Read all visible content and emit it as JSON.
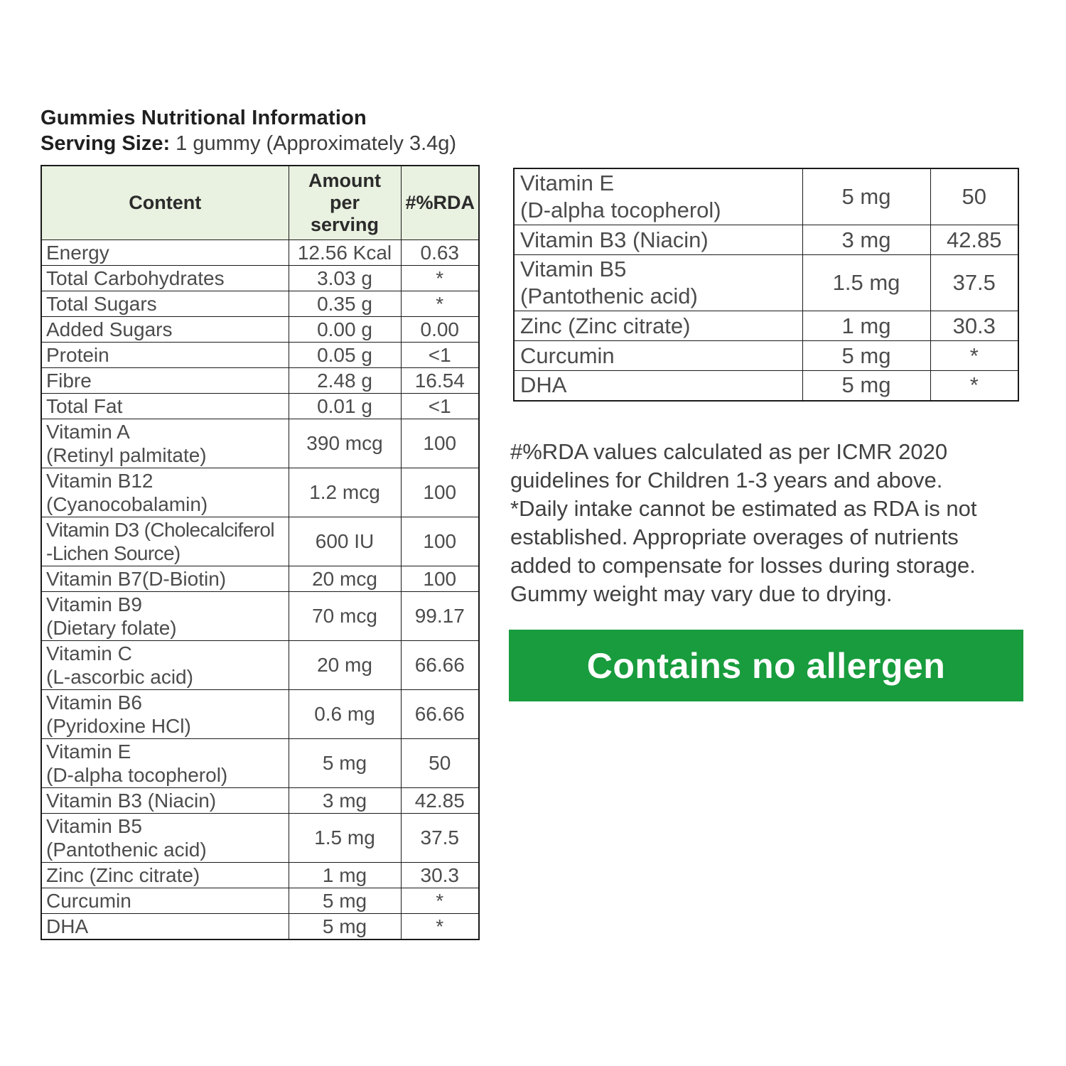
{
  "page": {
    "title": "Gummies Nutritional Information",
    "serving_label": "Serving Size:",
    "serving_value": " 1 gummy (Approximately 3.4g)"
  },
  "left_table": {
    "headers": [
      "Content",
      "Amount\nper\nserving",
      "#%RDA"
    ],
    "rows": [
      {
        "content": "Energy",
        "amount": "12.56 Kcal",
        "rda": "0.63"
      },
      {
        "content": "Total Carbohydrates",
        "amount": "3.03 g",
        "rda": "*"
      },
      {
        "content": "Total Sugars",
        "amount": "0.35 g",
        "rda": "*"
      },
      {
        "content": "Added Sugars",
        "amount": "0.00 g",
        "rda": "0.00"
      },
      {
        "content": "Protein",
        "amount": "0.05 g",
        "rda": "<1"
      },
      {
        "content": "Fibre",
        "amount": "2.48 g",
        "rda": "16.54"
      },
      {
        "content": "Total Fat",
        "amount": "0.01 g",
        "rda": "<1"
      },
      {
        "content": "Vitamin A\n(Retinyl palmitate)",
        "amount": "390 mcg",
        "rda": "100"
      },
      {
        "content": "Vitamin B12\n(Cyanocobalamin)",
        "amount": "1.2 mcg",
        "rda": "100"
      },
      {
        "content": "Vitamin D3 (Cholecalciferol\n-Lichen Source)",
        "amount": "600 IU",
        "rda": "100",
        "compact": true
      },
      {
        "content": "Vitamin B7(D-Biotin)",
        "amount": "20 mcg",
        "rda": "100"
      },
      {
        "content": "Vitamin B9\n(Dietary folate)",
        "amount": "70 mcg",
        "rda": "99.17"
      },
      {
        "content": "Vitamin C\n(L-ascorbic acid)",
        "amount": "20 mg",
        "rda": "66.66"
      },
      {
        "content": "Vitamin B6\n(Pyridoxine HCl)",
        "amount": "0.6 mg",
        "rda": "66.66"
      },
      {
        "content": "Vitamin E\n(D-alpha tocopherol)",
        "amount": "5 mg",
        "rda": "50"
      },
      {
        "content": "Vitamin B3 (Niacin)",
        "amount": "3 mg",
        "rda": "42.85"
      },
      {
        "content": "Vitamin B5\n(Pantothenic acid)",
        "amount": "1.5 mg",
        "rda": "37.5"
      },
      {
        "content": "Zinc (Zinc citrate)",
        "amount": "1 mg",
        "rda": "30.3"
      },
      {
        "content": "Curcumin",
        "amount": "5 mg",
        "rda": "*"
      },
      {
        "content": "DHA",
        "amount": "5 mg",
        "rda": "*"
      }
    ]
  },
  "right_table": {
    "rows": [
      {
        "content": "Vitamin E\n(D-alpha tocopherol)",
        "amount": "5 mg",
        "rda": "50"
      },
      {
        "content": "Vitamin B3 (Niacin)",
        "amount": "3 mg",
        "rda": "42.85"
      },
      {
        "content": "Vitamin B5\n(Pantothenic acid)",
        "amount": "1.5 mg",
        "rda": "37.5"
      },
      {
        "content": "Zinc (Zinc citrate)",
        "amount": "1 mg",
        "rda": "30.3"
      },
      {
        "content": "Curcumin",
        "amount": "5 mg",
        "rda": "*"
      },
      {
        "content": "DHA",
        "amount": "5 mg",
        "rda": "*"
      }
    ]
  },
  "footnote": "#%RDA values calculated as per ICMR 2020\nguidelines for Children 1-3 years and above.\n*Daily intake cannot be estimated as RDA is not\nestablished. Appropriate overages of nutrients\nadded to compensate for losses during storage.\nGummy weight may vary due to drying.",
  "banner": {
    "text": "Contains no allergen",
    "bg_color": "#189c3d",
    "text_color": "#ffffff"
  },
  "colors": {
    "header_bg": "#e9f1e0",
    "border": "#1a1a1a",
    "table_text": "#4c4c4c"
  }
}
